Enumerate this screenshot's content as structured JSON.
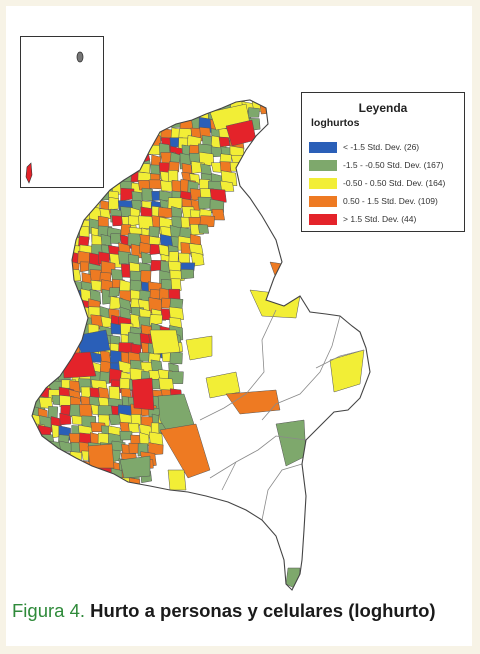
{
  "colors": {
    "very_low": "#2a5fb8",
    "low": "#7ea86c",
    "mid": "#f2ee36",
    "high": "#ee7a22",
    "very_high": "#e4232a",
    "outline": "#555555",
    "caption_accent": "#2f8a3a"
  },
  "legend": {
    "title": "Leyenda",
    "subtitle": "loghurtos",
    "items": [
      {
        "label": "< -1.5 Std. Dev. (26)",
        "color": "#2a5fb8"
      },
      {
        "label": "-1.5 - -0.50 Std. Dev. (167)",
        "color": "#7ea86c"
      },
      {
        "label": "-0.50 - 0.50 Std. Dev. (164)",
        "color": "#f2ee36"
      },
      {
        "label": "0.50 - 1.5 Std. Dev. (109)",
        "color": "#ee7a22"
      },
      {
        "label": "> 1.5 Std. Dev. (44)",
        "color": "#e4232a"
      }
    ]
  },
  "caption": {
    "figure_number": "Figura 4.",
    "title": "Hurto a personas y celulares (loghurto)"
  }
}
